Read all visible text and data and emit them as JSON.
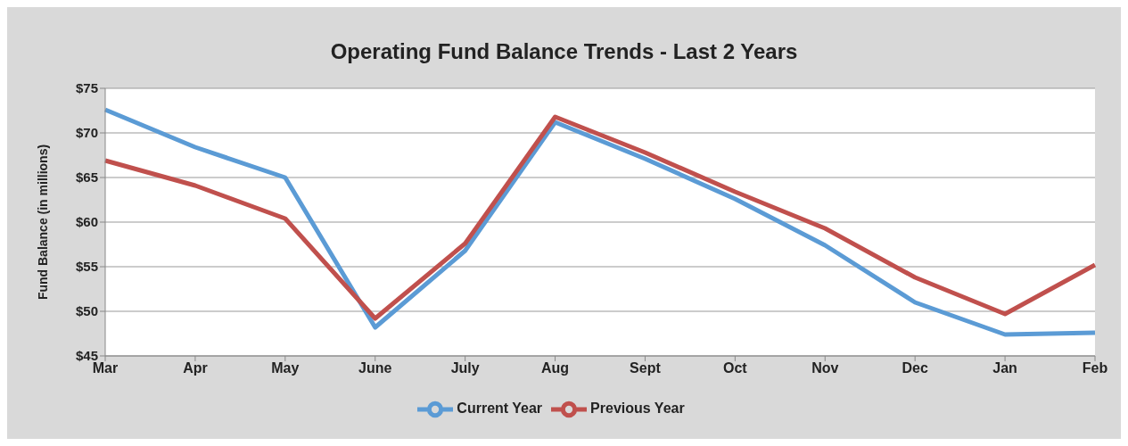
{
  "chart_data": {
    "type": "line",
    "title": "Operating Fund Balance Trends - Last 2 Years",
    "ylabel": "Fund Balance (in millions)",
    "categories": [
      "Mar",
      "Apr",
      "May",
      "June",
      "July",
      "Aug",
      "Sept",
      "Oct",
      "Nov",
      "Dec",
      "Jan",
      "Feb"
    ],
    "series": [
      {
        "name": "Current Year",
        "color": "#5b9bd5",
        "values": [
          72.6,
          68.4,
          65.0,
          48.2,
          56.8,
          71.2,
          67.1,
          62.6,
          57.4,
          51.0,
          47.4,
          47.6
        ]
      },
      {
        "name": "Previous Year",
        "color": "#c0504d",
        "values": [
          66.9,
          64.1,
          60.4,
          49.2,
          57.6,
          71.8,
          67.8,
          63.4,
          59.3,
          53.8,
          49.7,
          55.2
        ]
      }
    ],
    "ylim": [
      45,
      75
    ],
    "yticks": [
      {
        "value": 45,
        "label": "$45"
      },
      {
        "value": 50,
        "label": "$50"
      },
      {
        "value": 55,
        "label": "$55"
      },
      {
        "value": 60,
        "label": "$60"
      },
      {
        "value": 65,
        "label": "$65"
      },
      {
        "value": 70,
        "label": "$70"
      },
      {
        "value": 75,
        "label": "$75"
      }
    ],
    "grid": "y",
    "legend": "bottom"
  }
}
